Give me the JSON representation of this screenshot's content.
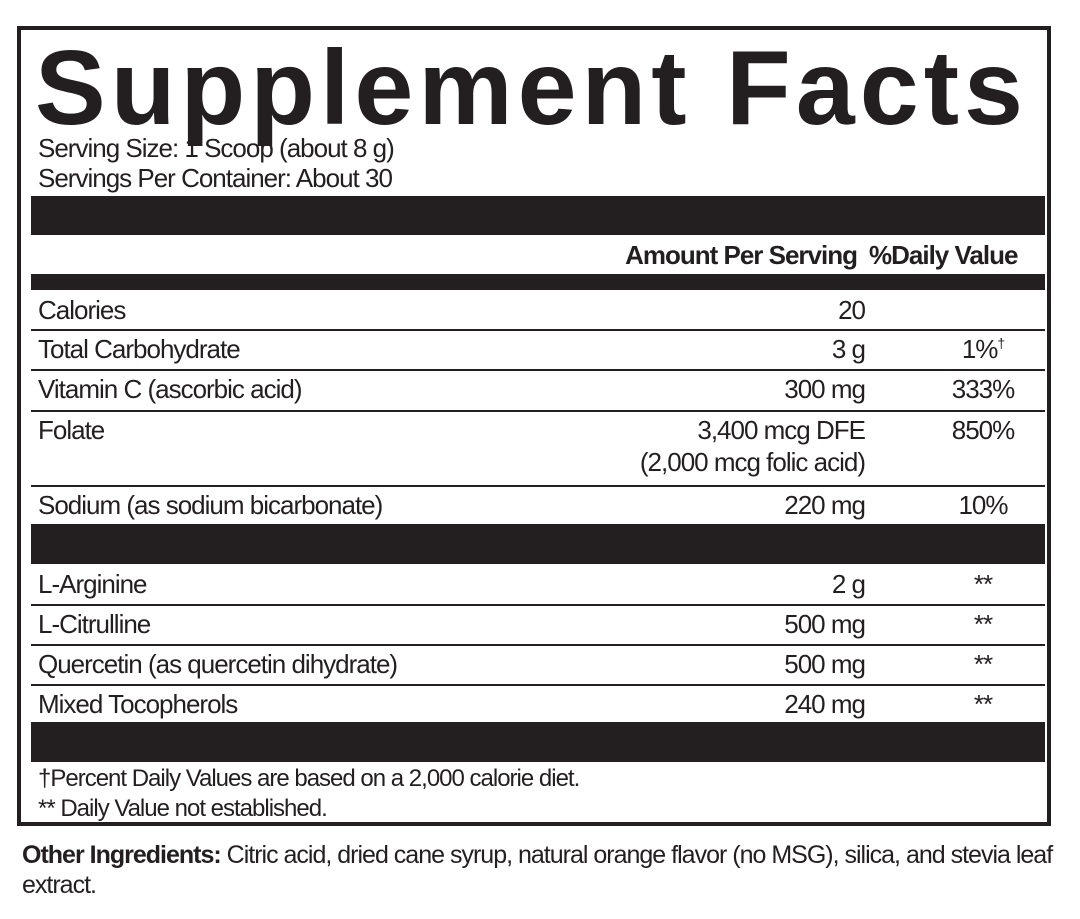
{
  "title": "Supplement Facts",
  "serving_size": "Serving Size: 1 Scoop (about 8 g)",
  "servings_per_container": "Servings Per Container: About 30",
  "header": {
    "amount_per_serving": "Amount Per Serving",
    "daily_value": "%Daily Value"
  },
  "nutrients": [
    {
      "name": "Calories",
      "amount": "20",
      "dv": ""
    },
    {
      "name": "Total Carbohydrate",
      "amount": "3 g",
      "dv": "1%",
      "dv_mark": "†"
    },
    {
      "name": "Vitamin C (ascorbic acid)",
      "amount": "300 mg",
      "dv": "333%"
    },
    {
      "name": "Folate",
      "amount": "3,400 mcg DFE",
      "amount_line2": "(2,000 mcg folic acid)",
      "dv": "850%"
    },
    {
      "name": "Sodium (as sodium bicarbonate)",
      "amount": "220 mg",
      "dv": "10%"
    }
  ],
  "other_nutrients": [
    {
      "name": "L-Arginine",
      "amount": "2 g",
      "dv": "**"
    },
    {
      "name": "L-Citrulline",
      "amount": "500 mg",
      "dv": "**"
    },
    {
      "name": "Quercetin (as quercetin dihydrate)",
      "amount": "500 mg",
      "dv": "**"
    },
    {
      "name": "Mixed Tocopherols",
      "amount": "240 mg",
      "dv": "**"
    }
  ],
  "footnotes": {
    "percent_dv": "†Percent Daily Values are based on a 2,000 calorie diet.",
    "not_established": "** Daily Value not established."
  },
  "other_ingredients": {
    "label": "Other Ingredients:",
    "text": " Citric acid, dried cane syrup, natural orange flavor (no MSG), silica, and stevia leaf extract."
  },
  "colors": {
    "ink": "#231f20",
    "background": "#ffffff"
  }
}
